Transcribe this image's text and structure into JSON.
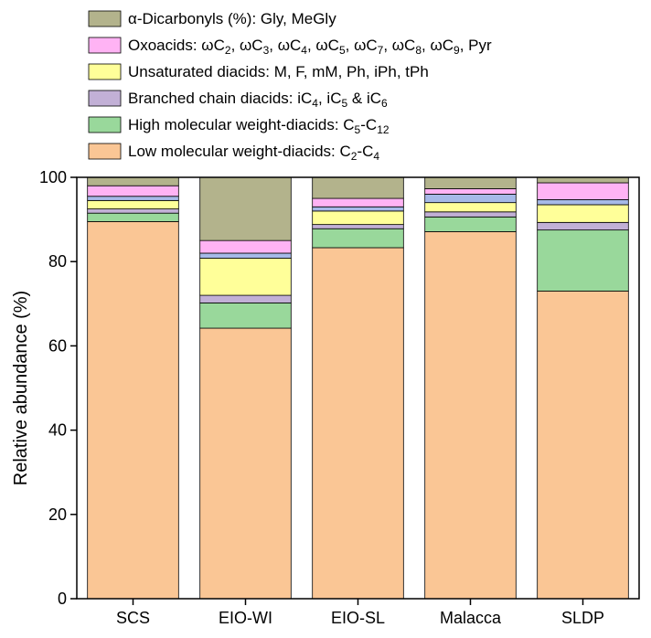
{
  "chart_data": {
    "type": "bar",
    "stacked": true,
    "categories": [
      "SCS",
      "EIO-WI",
      "EIO-SL",
      "Malacca",
      "SLDP"
    ],
    "ylabel": "Relative abundance (%)",
    "ylim": [
      0,
      100
    ],
    "yticks": [
      "0",
      "20",
      "40",
      "60",
      "80",
      "100"
    ],
    "legend_position": "top",
    "series": [
      {
        "name": "Low molecular weight-diacids: C2-C4",
        "color": "#fac695",
        "label_parts": [
          [
            "Low molecular weight-diacids: C",
            "n"
          ],
          [
            "2",
            "sub"
          ],
          [
            "-C",
            "n"
          ],
          [
            "4",
            "sub"
          ]
        ],
        "values": [
          89.5,
          64.2,
          83.3,
          87.1,
          73.0
        ]
      },
      {
        "name": "High molecular weight-diacids: C5-C12",
        "color": "#99d89b",
        "label_parts": [
          [
            "High molecular weight-diacids: C",
            "n"
          ],
          [
            "5",
            "sub"
          ],
          [
            "-C",
            "n"
          ],
          [
            "12",
            "sub"
          ]
        ],
        "values": [
          2.0,
          6.0,
          4.5,
          3.5,
          14.5
        ]
      },
      {
        "name": "Branched chain diacids: iC4, iC5 & iC6",
        "color": "#c2b0d6",
        "label_parts": [
          [
            "Branched chain diacids: iC",
            "n"
          ],
          [
            "4",
            "sub"
          ],
          [
            ", iC",
            "n"
          ],
          [
            "5",
            "sub"
          ],
          [
            " & iC",
            "n"
          ],
          [
            "6",
            "sub"
          ]
        ],
        "values": [
          1.0,
          1.8,
          1.0,
          1.2,
          1.8
        ]
      },
      {
        "name": "Unsaturated diacids: M, F, mM, Ph, iPh, tPh",
        "color": "#ffff99",
        "label_parts": [
          [
            "Unsaturated diacids: M, F, mM, Ph, iPh, tPh",
            "n"
          ]
        ],
        "values": [
          2.0,
          8.8,
          3.2,
          2.2,
          4.2
        ]
      },
      {
        "name": "",
        "color": "#a6b9e8",
        "values": [
          1.0,
          1.2,
          1.0,
          2.0,
          1.2
        ]
      },
      {
        "name": "Oxoacids: ωC2, ωC3, ωC4, ωC5, ωC7, ωC8, ωC9, Pyr",
        "color": "#ffb3f4",
        "label_parts": [
          [
            "Oxoacids: ωC",
            "n"
          ],
          [
            "2",
            "sub"
          ],
          [
            ", ωC",
            "n"
          ],
          [
            "3",
            "sub"
          ],
          [
            ", ωC",
            "n"
          ],
          [
            "4",
            "sub"
          ],
          [
            ", ωC",
            "n"
          ],
          [
            "5",
            "sub"
          ],
          [
            ", ωC",
            "n"
          ],
          [
            "7",
            "sub"
          ],
          [
            ", ωC",
            "n"
          ],
          [
            "8",
            "sub"
          ],
          [
            ", ωC",
            "n"
          ],
          [
            "9",
            "sub"
          ],
          [
            ", Pyr",
            "n"
          ]
        ],
        "values": [
          2.5,
          3.0,
          2.0,
          1.3,
          4.0
        ]
      },
      {
        "name": "α-Dicarbonyls (%): Gly, MeGly",
        "color": "#b3b38c",
        "label_parts": [
          [
            "α-Dicarbonyls (%): Gly, MeGly",
            "n"
          ]
        ],
        "values": [
          2.0,
          15.0,
          5.0,
          2.7,
          1.3
        ]
      }
    ],
    "legend_order": [
      6,
      5,
      3,
      2,
      1,
      0
    ]
  }
}
